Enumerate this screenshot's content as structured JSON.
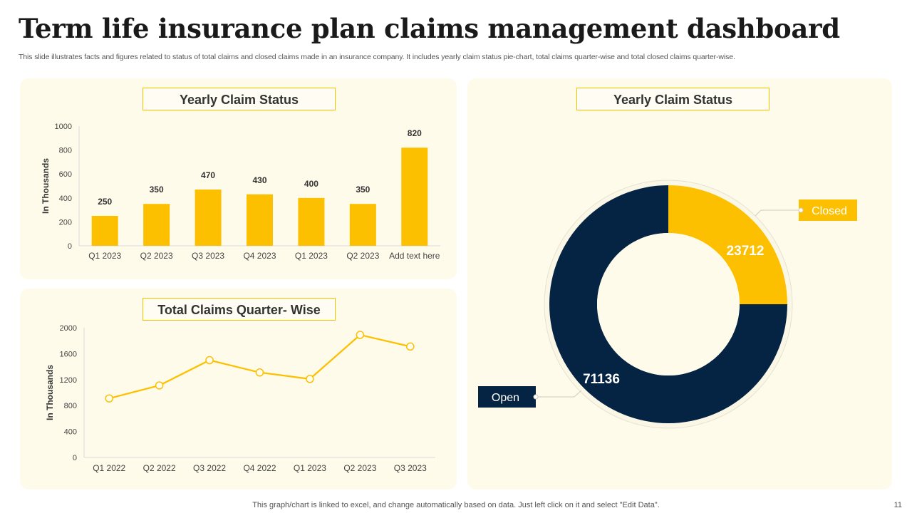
{
  "page": {
    "title": "Term life insurance plan claims management dashboard",
    "subtitle": "This slide illustrates facts and figures related to status of total claims and closed claims made in an insurance company. It includes yearly claim status pie-chart, total claims quarter-wise and total closed claims quarter-wise.",
    "footer": "This graph/chart is linked to excel,  and change automatically based on data. Just left click on it and select \"Edit Data\".",
    "page_number": "11"
  },
  "colors": {
    "accent": "#fcc000",
    "navy": "#052342",
    "panel": "#fefbea"
  },
  "chart_data": [
    {
      "type": "bar",
      "title": "Yearly Claim Status",
      "categories": [
        "Q1 2023",
        "Q2 2023",
        "Q3 2023",
        "Q4 2023",
        "Q1 2023",
        "Q2 2023",
        "Add text here"
      ],
      "values": [
        250,
        350,
        470,
        430,
        400,
        350,
        820
      ],
      "xlabel": "",
      "ylabel": "In Thousands",
      "ylim": [
        0,
        1000
      ],
      "yticks": [
        0,
        200,
        400,
        600,
        800,
        1000
      ],
      "color": "#fcc000"
    },
    {
      "type": "line",
      "title": "Total Claims Quarter- Wise",
      "categories": [
        "Q1 2022",
        "Q2 2022",
        "Q3 2022",
        "Q4 2022",
        "Q1 2023",
        "Q2 2023",
        "Q3 2023"
      ],
      "values": [
        910,
        1110,
        1500,
        1310,
        1210,
        1890,
        1710
      ],
      "xlabel": "",
      "ylabel": "In Thousands",
      "ylim": [
        0,
        2000
      ],
      "yticks": [
        0,
        400,
        800,
        1200,
        1600,
        2000
      ],
      "color": "#fcc000"
    },
    {
      "type": "pie",
      "title": "Yearly Claim Status",
      "labels": [
        "Closed",
        "Open"
      ],
      "values": [
        23712,
        71136
      ],
      "colors": [
        "#fcc000",
        "#052342"
      ]
    }
  ]
}
